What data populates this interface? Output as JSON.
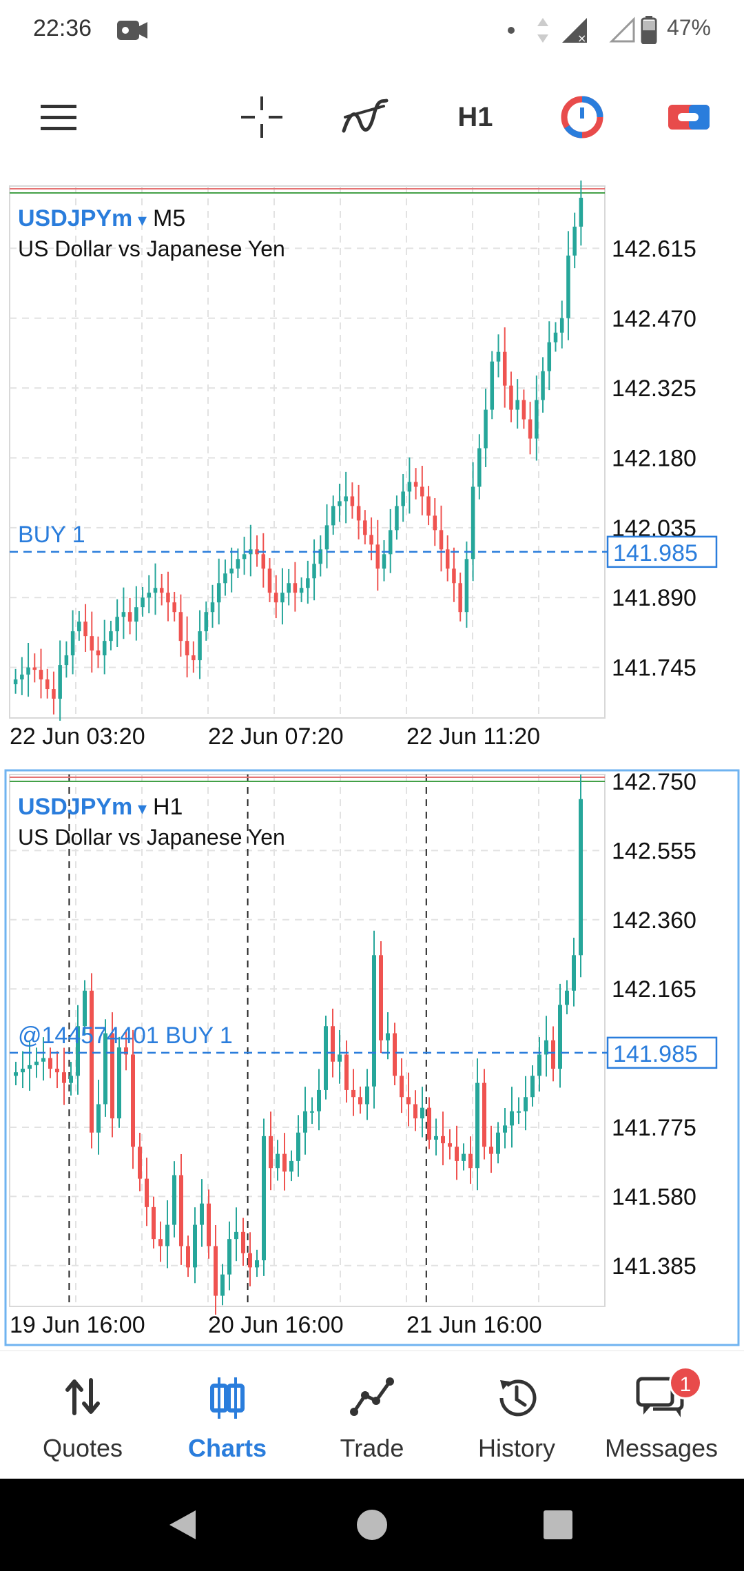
{
  "status_bar": {
    "time": "22:36",
    "battery": "47%",
    "icons": [
      "video-camera-icon",
      "dot-icon",
      "data-arrows-icon",
      "signal-icon",
      "signal-empty-icon",
      "battery-icon"
    ]
  },
  "toolbar": {
    "timeframe": "H1",
    "icons": [
      "menu-icon",
      "crosshair-icon",
      "indicators-icon",
      "timeframe-label",
      "clock-icon",
      "toggle-icon"
    ]
  },
  "colors": {
    "accent": "#2a7ddc",
    "bull": "#26a69a",
    "bear": "#ef5350",
    "grid": "#e2e2e2",
    "level_red": "#e57373",
    "level_green": "#43a047"
  },
  "chart_top": {
    "symbol": "USDJPYm",
    "timeframe": "M5",
    "description": "US Dollar vs Japanese Yen",
    "order_label": "BUY 1",
    "order_price_tag": "141.985",
    "y_ticks": [
      "142.615",
      "142.470",
      "142.325",
      "142.180",
      "142.035",
      "141.890",
      "141.745"
    ],
    "x_ticks": [
      "22 Jun 03:20",
      "22 Jun 07:20",
      "22 Jun 11:20"
    ]
  },
  "chart_bottom": {
    "symbol": "USDJPYm",
    "timeframe": "H1",
    "description": "US Dollar vs Japanese Yen",
    "order_label": "@144574401 BUY 1",
    "order_price_tag": "141.985",
    "y_ticks": [
      "142.750",
      "142.555",
      "142.360",
      "142.165",
      "141.775",
      "141.580",
      "141.385"
    ],
    "x_ticks": [
      "19 Jun 16:00",
      "20 Jun 16:00",
      "21 Jun 16:00"
    ]
  },
  "chart_data": [
    {
      "type": "candlestick",
      "title": "USDJPYm M5",
      "ylim": [
        141.64,
        142.73
      ],
      "order_level": 141.985,
      "close_trace": [
        141.72,
        141.73,
        141.745,
        141.74,
        141.72,
        141.7,
        141.68,
        141.75,
        141.77,
        141.82,
        141.84,
        141.81,
        141.78,
        141.77,
        141.8,
        141.82,
        141.85,
        141.86,
        141.84,
        141.87,
        141.89,
        141.9,
        141.91,
        141.9,
        141.88,
        141.86,
        141.8,
        141.77,
        141.76,
        141.82,
        141.86,
        141.88,
        141.92,
        141.94,
        141.95,
        141.97,
        141.98,
        141.99,
        141.98,
        141.95,
        141.9,
        141.88,
        141.9,
        141.92,
        141.9,
        141.91,
        141.93,
        141.96,
        141.99,
        142.04,
        142.08,
        142.09,
        142.1,
        142.08,
        142.05,
        142.02,
        142.0,
        141.95,
        141.98,
        142.03,
        142.08,
        142.11,
        142.13,
        142.12,
        142.1,
        142.06,
        142.03,
        141.99,
        141.95,
        141.92,
        141.86,
        141.97,
        142.12,
        142.2,
        142.28,
        142.38,
        142.4,
        142.33,
        142.28,
        142.3,
        142.26,
        142.22,
        142.3,
        142.36,
        142.42,
        142.44,
        142.47,
        142.6,
        142.66,
        142.72
      ],
      "x_ticks": [
        "22 Jun 03:20",
        "22 Jun 07:20",
        "22 Jun 11:20"
      ]
    },
    {
      "type": "candlestick",
      "title": "USDJPYm H1",
      "ylim": [
        141.27,
        142.75
      ],
      "order_level": 141.985,
      "close_trace": [
        141.93,
        141.94,
        141.95,
        141.96,
        141.97,
        141.94,
        141.93,
        141.9,
        141.92,
        142.06,
        142.16,
        141.76,
        141.84,
        142.04,
        141.8,
        142.0,
        141.98,
        141.72,
        141.63,
        141.55,
        141.46,
        141.44,
        141.5,
        141.64,
        141.44,
        141.38,
        141.5,
        141.56,
        141.44,
        141.3,
        141.36,
        141.46,
        141.48,
        141.42,
        141.38,
        141.4,
        141.75,
        141.66,
        141.7,
        141.65,
        141.68,
        141.76,
        141.82,
        141.82,
        141.88,
        142.06,
        141.96,
        141.98,
        141.88,
        141.86,
        141.84,
        141.89,
        142.26,
        142.02,
        142.04,
        141.92,
        141.86,
        141.84,
        141.8,
        141.83,
        141.74,
        141.75,
        141.73,
        141.72,
        141.68,
        141.7,
        141.66,
        141.9,
        141.72,
        141.7,
        141.76,
        141.78,
        141.82,
        141.82,
        141.86,
        141.92,
        141.98,
        142.02,
        141.94,
        142.12,
        142.16,
        142.26,
        142.7
      ],
      "x_ticks": [
        "19 Jun 16:00",
        "20 Jun 16:00",
        "21 Jun 16:00"
      ]
    }
  ],
  "bottom_nav": {
    "items": [
      {
        "label": "Quotes",
        "icon": "quotes-arrows-icon"
      },
      {
        "label": "Charts",
        "icon": "charts-candles-icon"
      },
      {
        "label": "Trade",
        "icon": "trade-line-icon"
      },
      {
        "label": "History",
        "icon": "history-clock-icon"
      },
      {
        "label": "Messages",
        "icon": "messages-icon"
      }
    ],
    "active": "Charts",
    "messages_badge": "1"
  },
  "system_nav": [
    "back-icon",
    "home-icon",
    "recents-icon"
  ]
}
